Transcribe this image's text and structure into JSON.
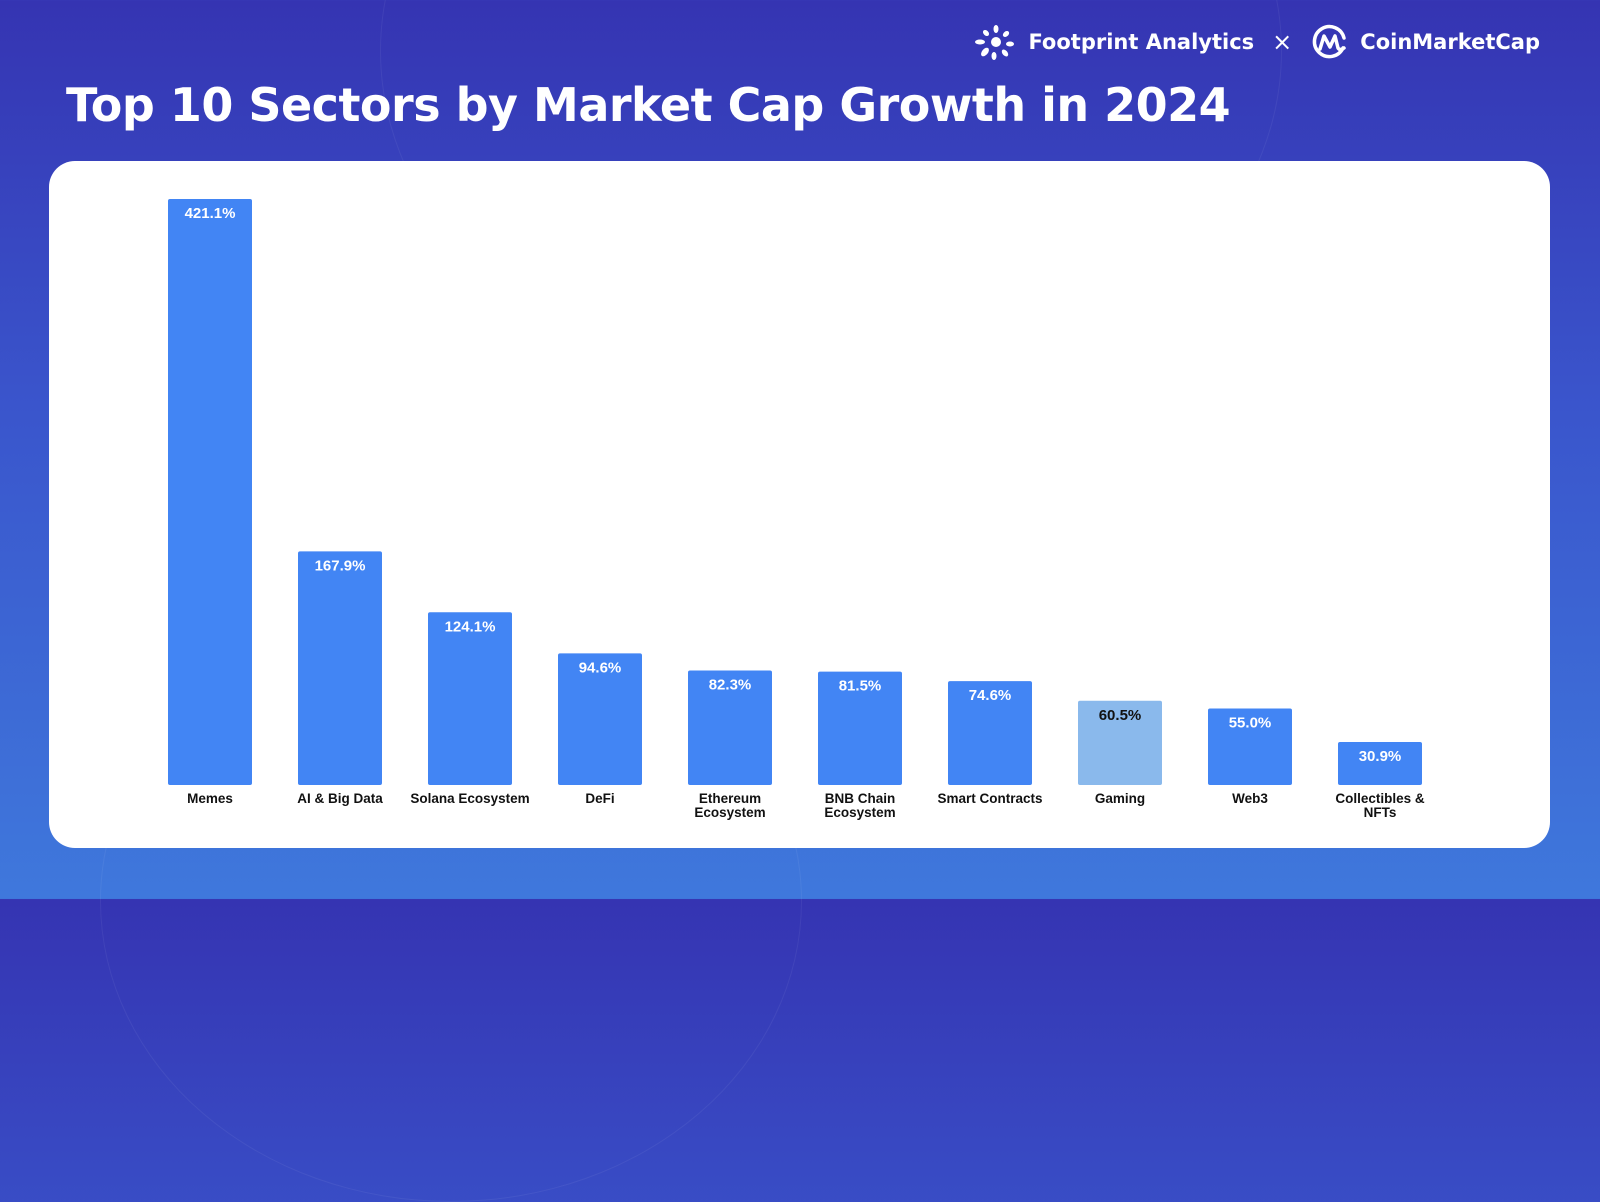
{
  "header": {
    "title": "Top 10 Sectors by Market Cap Growth in 2024",
    "partner_1": "Footprint Analytics",
    "separator": "×",
    "partner_2": "CoinMarketCap",
    "partner_1_icon": "footprint-sparkle-logo",
    "partner_2_icon": "coinmarketcap-logo"
  },
  "chart_data": {
    "type": "bar",
    "title": "",
    "xlabel": "",
    "ylabel": "",
    "ylim": [
      0,
      421.1
    ],
    "grid": false,
    "legend": "none",
    "categories": [
      "Memes",
      "AI & Big Data",
      "Solana Ecosystem",
      "DeFi",
      "Ethereum Ecosystem",
      "BNB Chain Ecosystem",
      "Smart Contracts",
      "Gaming",
      "Web3",
      "Collectibles & NFTs"
    ],
    "category_lines": [
      [
        "Memes"
      ],
      [
        "AI & Big Data"
      ],
      [
        "Solana Ecosystem"
      ],
      [
        "DeFi"
      ],
      [
        "Ethereum",
        "Ecosystem"
      ],
      [
        "BNB Chain",
        "Ecosystem"
      ],
      [
        "Smart Contracts"
      ],
      [
        "Gaming"
      ],
      [
        "Web3"
      ],
      [
        "Collectibles &",
        "NFTs"
      ]
    ],
    "values": [
      421.1,
      167.9,
      124.1,
      94.6,
      82.3,
      81.5,
      74.6,
      60.5,
      55.0,
      30.9
    ],
    "data_labels": [
      "421.1%",
      "167.9%",
      "124.1%",
      "94.6%",
      "82.3%",
      "81.5%",
      "74.6%",
      "60.5%",
      "55.0%",
      "30.9%"
    ],
    "colors": [
      "#4285f4",
      "#4285f4",
      "#4285f4",
      "#4285f4",
      "#4285f4",
      "#4285f4",
      "#4285f4",
      "#8ab9ec",
      "#4285f4",
      "#4285f4"
    ],
    "label_colors": [
      "#ffffff",
      "#ffffff",
      "#ffffff",
      "#ffffff",
      "#ffffff",
      "#ffffff",
      "#ffffff",
      "#111111",
      "#ffffff",
      "#ffffff"
    ]
  }
}
